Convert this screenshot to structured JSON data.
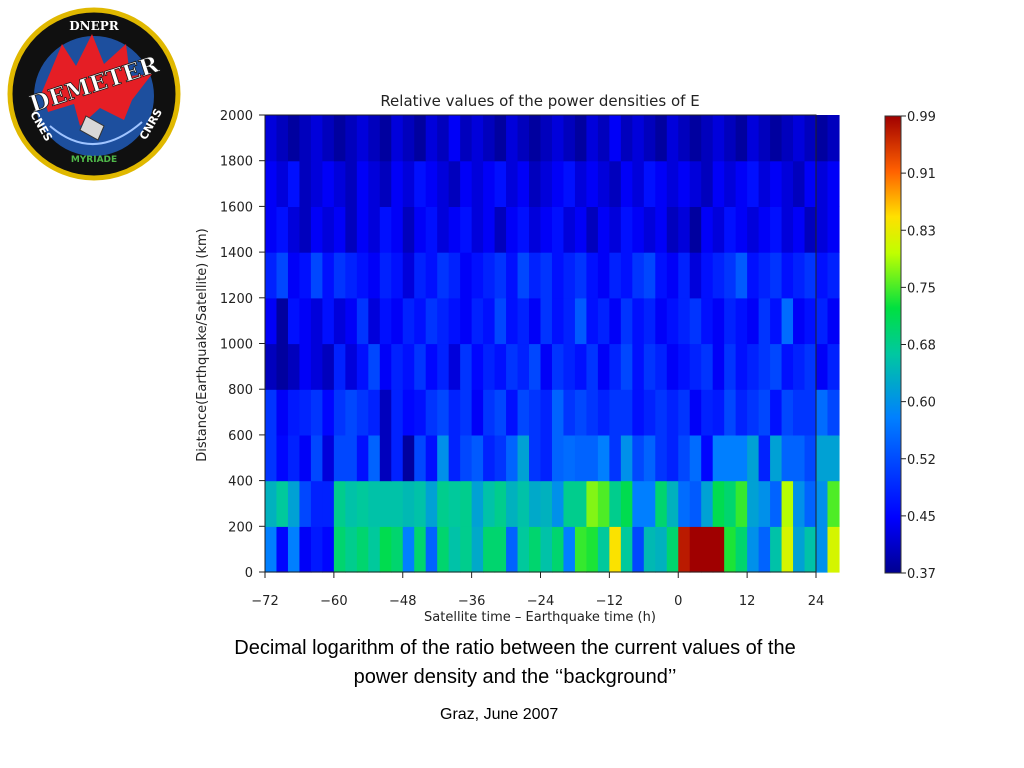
{
  "logo": {
    "top_text": "DNEPR",
    "name": "DEMETER",
    "left_text": "CNES",
    "right_text": "CNRS",
    "bottom_text": "MYRIADE"
  },
  "chart_data": {
    "type": "heatmap",
    "title": "Relative values of the power densities of E",
    "xlabel": "Satellite time – Earthquake time (h)",
    "ylabel": "Distance(Earthquake/Satellite) (km)",
    "xlim": [
      -72,
      24
    ],
    "ylim": [
      0,
      2000
    ],
    "x_ticks": [
      -72,
      -60,
      -48,
      -36,
      -24,
      -12,
      0,
      12,
      24
    ],
    "y_ticks": [
      0,
      200,
      400,
      600,
      800,
      1000,
      1200,
      1400,
      1600,
      1800,
      2000
    ],
    "x_bin_width_h": 2,
    "y_bin_width_km": 200,
    "colorbar": {
      "min": 0.37,
      "max": 0.99,
      "ticks": [
        "0.37",
        "0.45",
        "0.52",
        "0.60",
        "0.68",
        "0.75",
        "0.83",
        "0.91",
        "0.99"
      ]
    },
    "rows_bottom_to_top": [
      [
        0.58,
        0.45,
        0.58,
        0.44,
        0.47,
        0.45,
        0.7,
        0.68,
        0.7,
        0.67,
        0.72,
        0.7,
        0.58,
        0.7,
        0.55,
        0.7,
        0.66,
        0.68,
        0.63,
        0.7,
        0.7,
        0.55,
        0.67,
        0.7,
        0.66,
        0.7,
        0.58,
        0.75,
        0.74,
        0.67,
        0.85,
        0.67,
        0.52,
        0.65,
        0.64,
        0.7,
        0.97,
        0.99,
        0.99,
        0.99,
        0.74,
        0.7,
        0.6,
        0.55,
        0.66,
        0.82,
        0.62,
        0.66,
        0.6,
        0.82
      ],
      [
        0.64,
        0.67,
        0.62,
        0.52,
        0.48,
        0.48,
        0.68,
        0.66,
        0.67,
        0.66,
        0.66,
        0.66,
        0.65,
        0.66,
        0.62,
        0.68,
        0.67,
        0.68,
        0.62,
        0.66,
        0.68,
        0.64,
        0.66,
        0.63,
        0.64,
        0.6,
        0.68,
        0.68,
        0.78,
        0.76,
        0.68,
        0.72,
        0.58,
        0.58,
        0.7,
        0.64,
        0.56,
        0.54,
        0.62,
        0.72,
        0.7,
        0.75,
        0.62,
        0.6,
        0.55,
        0.8,
        0.6,
        0.55,
        0.6,
        0.76
      ],
      [
        0.5,
        0.45,
        0.48,
        0.44,
        0.52,
        0.42,
        0.52,
        0.52,
        0.46,
        0.55,
        0.4,
        0.48,
        0.38,
        0.52,
        0.46,
        0.6,
        0.48,
        0.52,
        0.54,
        0.48,
        0.5,
        0.55,
        0.62,
        0.5,
        0.48,
        0.55,
        0.56,
        0.55,
        0.55,
        0.58,
        0.5,
        0.6,
        0.52,
        0.55,
        0.5,
        0.48,
        0.52,
        0.56,
        0.45,
        0.58,
        0.58,
        0.58,
        0.62,
        0.48,
        0.62,
        0.55,
        0.55,
        0.52,
        0.62,
        0.62
      ],
      [
        0.5,
        0.44,
        0.47,
        0.48,
        0.5,
        0.45,
        0.5,
        0.52,
        0.5,
        0.48,
        0.4,
        0.48,
        0.45,
        0.46,
        0.5,
        0.52,
        0.48,
        0.5,
        0.44,
        0.5,
        0.52,
        0.46,
        0.52,
        0.5,
        0.48,
        0.55,
        0.5,
        0.52,
        0.5,
        0.48,
        0.5,
        0.5,
        0.46,
        0.48,
        0.5,
        0.48,
        0.5,
        0.44,
        0.48,
        0.47,
        0.52,
        0.48,
        0.5,
        0.52,
        0.46,
        0.52,
        0.5,
        0.5,
        0.56,
        0.52
      ],
      [
        0.4,
        0.38,
        0.4,
        0.44,
        0.42,
        0.4,
        0.48,
        0.42,
        0.46,
        0.52,
        0.44,
        0.48,
        0.46,
        0.5,
        0.45,
        0.48,
        0.42,
        0.5,
        0.45,
        0.48,
        0.46,
        0.5,
        0.48,
        0.52,
        0.44,
        0.5,
        0.48,
        0.46,
        0.5,
        0.44,
        0.48,
        0.52,
        0.46,
        0.5,
        0.48,
        0.44,
        0.46,
        0.48,
        0.5,
        0.44,
        0.5,
        0.46,
        0.48,
        0.5,
        0.52,
        0.46,
        0.48,
        0.5,
        0.44,
        0.48
      ],
      [
        0.44,
        0.38,
        0.46,
        0.44,
        0.42,
        0.46,
        0.42,
        0.44,
        0.5,
        0.42,
        0.46,
        0.44,
        0.48,
        0.46,
        0.5,
        0.48,
        0.46,
        0.44,
        0.48,
        0.46,
        0.52,
        0.46,
        0.48,
        0.44,
        0.5,
        0.46,
        0.48,
        0.54,
        0.46,
        0.48,
        0.44,
        0.5,
        0.46,
        0.48,
        0.44,
        0.46,
        0.48,
        0.5,
        0.46,
        0.44,
        0.48,
        0.46,
        0.44,
        0.5,
        0.46,
        0.56,
        0.44,
        0.46,
        0.48,
        0.44
      ],
      [
        0.48,
        0.52,
        0.44,
        0.46,
        0.52,
        0.46,
        0.5,
        0.48,
        0.46,
        0.44,
        0.48,
        0.46,
        0.42,
        0.48,
        0.46,
        0.5,
        0.48,
        0.44,
        0.46,
        0.48,
        0.5,
        0.46,
        0.52,
        0.48,
        0.5,
        0.46,
        0.48,
        0.5,
        0.46,
        0.44,
        0.48,
        0.46,
        0.5,
        0.52,
        0.46,
        0.44,
        0.48,
        0.42,
        0.46,
        0.48,
        0.5,
        0.54,
        0.46,
        0.48,
        0.5,
        0.46,
        0.48,
        0.5,
        0.46,
        0.48
      ],
      [
        0.44,
        0.46,
        0.42,
        0.4,
        0.44,
        0.42,
        0.44,
        0.4,
        0.44,
        0.42,
        0.46,
        0.44,
        0.4,
        0.44,
        0.46,
        0.42,
        0.44,
        0.46,
        0.42,
        0.44,
        0.4,
        0.44,
        0.46,
        0.42,
        0.44,
        0.46,
        0.42,
        0.44,
        0.4,
        0.44,
        0.42,
        0.46,
        0.44,
        0.42,
        0.44,
        0.4,
        0.42,
        0.38,
        0.44,
        0.42,
        0.46,
        0.44,
        0.42,
        0.44,
        0.46,
        0.42,
        0.44,
        0.4,
        0.42,
        0.44
      ],
      [
        0.44,
        0.42,
        0.46,
        0.4,
        0.42,
        0.44,
        0.42,
        0.4,
        0.44,
        0.42,
        0.4,
        0.44,
        0.42,
        0.46,
        0.44,
        0.42,
        0.4,
        0.44,
        0.42,
        0.44,
        0.46,
        0.42,
        0.44,
        0.4,
        0.42,
        0.44,
        0.46,
        0.42,
        0.44,
        0.42,
        0.4,
        0.44,
        0.42,
        0.46,
        0.44,
        0.42,
        0.44,
        0.42,
        0.4,
        0.44,
        0.42,
        0.44,
        0.46,
        0.42,
        0.44,
        0.42,
        0.4,
        0.44,
        0.42,
        0.44
      ],
      [
        0.42,
        0.4,
        0.38,
        0.4,
        0.42,
        0.4,
        0.38,
        0.4,
        0.42,
        0.4,
        0.38,
        0.42,
        0.4,
        0.38,
        0.42,
        0.4,
        0.44,
        0.4,
        0.42,
        0.4,
        0.38,
        0.42,
        0.4,
        0.38,
        0.4,
        0.42,
        0.4,
        0.38,
        0.42,
        0.4,
        0.44,
        0.4,
        0.42,
        0.4,
        0.38,
        0.42,
        0.4,
        0.38,
        0.4,
        0.42,
        0.4,
        0.38,
        0.42,
        0.4,
        0.38,
        0.4,
        0.42,
        0.4,
        0.38,
        0.4
      ]
    ]
  },
  "caption": {
    "line1": "Decimal logarithm of the ratio between the current values of the",
    "line2": "power density and the ‘‘background’’"
  },
  "footer": "Graz, June 2007"
}
